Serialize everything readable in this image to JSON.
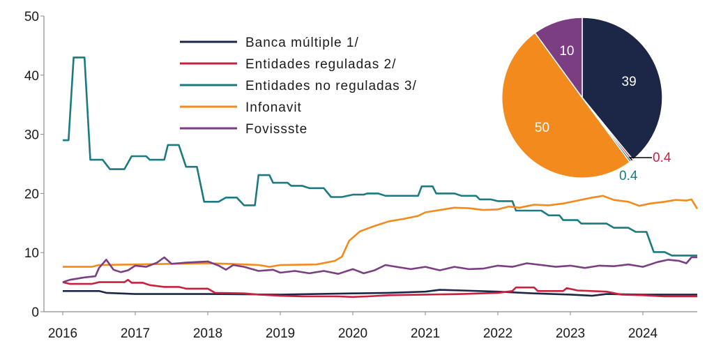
{
  "chart_data": [
    {
      "type": "line",
      "title": "",
      "xlabel": "",
      "ylabel": "",
      "xlim": [
        2016,
        2024.75
      ],
      "ylim": [
        0,
        50
      ],
      "y_ticks": [
        0,
        10,
        20,
        30,
        40,
        50
      ],
      "x_ticks": [
        2016,
        2017,
        2018,
        2019,
        2020,
        2021,
        2022,
        2023,
        2024
      ],
      "legend_position": "top-center",
      "series": [
        {
          "name": "Banca múltiple 1/",
          "color": "#1c2747",
          "points": [
            [
              2016.0,
              3.5
            ],
            [
              2016.5,
              3.5
            ],
            [
              2016.6,
              3.2
            ],
            [
              2017.0,
              3.0
            ],
            [
              2018.0,
              3.0
            ],
            [
              2019.0,
              2.9
            ],
            [
              2020.0,
              3.1
            ],
            [
              2020.5,
              3.2
            ],
            [
              2021.0,
              3.4
            ],
            [
              2021.2,
              3.7
            ],
            [
              2021.5,
              3.6
            ],
            [
              2022.0,
              3.4
            ],
            [
              2022.5,
              3.1
            ],
            [
              2023.0,
              2.9
            ],
            [
              2023.3,
              2.7
            ],
            [
              2023.5,
              3.0
            ],
            [
              2024.0,
              2.9
            ],
            [
              2024.75,
              2.9
            ]
          ]
        },
        {
          "name": "Entidades reguladas 2/",
          "color": "#c8203f",
          "points": [
            [
              2016.0,
              5.0
            ],
            [
              2016.1,
              4.7
            ],
            [
              2016.4,
              4.7
            ],
            [
              2016.5,
              5.0
            ],
            [
              2016.85,
              5.0
            ],
            [
              2016.9,
              5.4
            ],
            [
              2016.95,
              4.9
            ],
            [
              2017.1,
              4.9
            ],
            [
              2017.2,
              4.5
            ],
            [
              2017.4,
              4.2
            ],
            [
              2017.6,
              4.2
            ],
            [
              2017.7,
              3.9
            ],
            [
              2018.0,
              3.9
            ],
            [
              2018.1,
              3.2
            ],
            [
              2018.5,
              3.1
            ],
            [
              2018.7,
              2.9
            ],
            [
              2019.0,
              2.7
            ],
            [
              2019.3,
              2.6
            ],
            [
              2019.8,
              2.6
            ],
            [
              2020.0,
              2.5
            ],
            [
              2020.2,
              2.6
            ],
            [
              2020.5,
              2.8
            ],
            [
              2021.0,
              2.9
            ],
            [
              2021.5,
              3.0
            ],
            [
              2022.0,
              3.2
            ],
            [
              2022.2,
              3.5
            ],
            [
              2022.25,
              4.1
            ],
            [
              2022.5,
              4.1
            ],
            [
              2022.55,
              3.5
            ],
            [
              2022.9,
              3.5
            ],
            [
              2022.95,
              4.0
            ],
            [
              2023.1,
              3.6
            ],
            [
              2023.5,
              3.4
            ],
            [
              2023.7,
              2.9
            ],
            [
              2024.0,
              2.8
            ],
            [
              2024.3,
              2.6
            ],
            [
              2024.75,
              2.6
            ]
          ]
        },
        {
          "name": "Entidades no reguladas 3/",
          "color": "#1a7a80",
          "points": [
            [
              2016.0,
              29.0
            ],
            [
              2016.08,
              29.0
            ],
            [
              2016.15,
              43.0
            ],
            [
              2016.3,
              43.0
            ],
            [
              2016.38,
              25.7
            ],
            [
              2016.55,
              25.7
            ],
            [
              2016.65,
              24.1
            ],
            [
              2016.85,
              24.1
            ],
            [
              2016.95,
              26.3
            ],
            [
              2017.15,
              26.3
            ],
            [
              2017.2,
              25.7
            ],
            [
              2017.4,
              25.7
            ],
            [
              2017.45,
              28.2
            ],
            [
              2017.6,
              28.2
            ],
            [
              2017.7,
              24.5
            ],
            [
              2017.85,
              24.5
            ],
            [
              2017.95,
              18.6
            ],
            [
              2018.15,
              18.6
            ],
            [
              2018.25,
              19.3
            ],
            [
              2018.4,
              19.3
            ],
            [
              2018.5,
              18.0
            ],
            [
              2018.65,
              18.0
            ],
            [
              2018.7,
              23.1
            ],
            [
              2018.85,
              23.1
            ],
            [
              2018.9,
              21.8
            ],
            [
              2019.1,
              21.8
            ],
            [
              2019.15,
              21.3
            ],
            [
              2019.3,
              21.3
            ],
            [
              2019.4,
              20.9
            ],
            [
              2019.6,
              20.9
            ],
            [
              2019.7,
              19.4
            ],
            [
              2019.85,
              19.4
            ],
            [
              2020.0,
              19.8
            ],
            [
              2020.15,
              19.8
            ],
            [
              2020.2,
              20.0
            ],
            [
              2020.35,
              20.0
            ],
            [
              2020.45,
              19.6
            ],
            [
              2020.9,
              19.6
            ],
            [
              2020.95,
              21.2
            ],
            [
              2021.1,
              21.2
            ],
            [
              2021.15,
              20.0
            ],
            [
              2021.4,
              20.0
            ],
            [
              2021.5,
              19.6
            ],
            [
              2021.7,
              19.6
            ],
            [
              2021.75,
              19.0
            ],
            [
              2021.9,
              19.0
            ],
            [
              2022.0,
              18.7
            ],
            [
              2022.2,
              18.7
            ],
            [
              2022.25,
              17.1
            ],
            [
              2022.6,
              17.1
            ],
            [
              2022.7,
              16.3
            ],
            [
              2022.85,
              16.3
            ],
            [
              2022.9,
              15.5
            ],
            [
              2023.1,
              15.5
            ],
            [
              2023.15,
              14.9
            ],
            [
              2023.5,
              14.9
            ],
            [
              2023.6,
              14.2
            ],
            [
              2023.8,
              14.2
            ],
            [
              2023.9,
              13.5
            ],
            [
              2024.05,
              13.5
            ],
            [
              2024.15,
              10.1
            ],
            [
              2024.3,
              10.1
            ],
            [
              2024.4,
              9.5
            ],
            [
              2024.75,
              9.5
            ]
          ]
        },
        {
          "name": "Infonavit",
          "color": "#f28a1d",
          "points": [
            [
              2016.0,
              7.6
            ],
            [
              2016.4,
              7.6
            ],
            [
              2016.5,
              7.9
            ],
            [
              2017.0,
              8.0
            ],
            [
              2017.5,
              8.1
            ],
            [
              2018.0,
              8.2
            ],
            [
              2018.3,
              8.1
            ],
            [
              2018.7,
              7.9
            ],
            [
              2018.85,
              7.6
            ],
            [
              2019.0,
              7.9
            ],
            [
              2019.5,
              8.0
            ],
            [
              2019.75,
              8.6
            ],
            [
              2019.85,
              9.3
            ],
            [
              2019.95,
              12.0
            ],
            [
              2020.1,
              13.6
            ],
            [
              2020.3,
              14.5
            ],
            [
              2020.5,
              15.3
            ],
            [
              2020.7,
              15.7
            ],
            [
              2020.9,
              16.2
            ],
            [
              2021.0,
              16.8
            ],
            [
              2021.2,
              17.2
            ],
            [
              2021.4,
              17.6
            ],
            [
              2021.6,
              17.5
            ],
            [
              2021.8,
              17.2
            ],
            [
              2022.0,
              17.3
            ],
            [
              2022.15,
              17.8
            ],
            [
              2022.3,
              17.6
            ],
            [
              2022.5,
              18.1
            ],
            [
              2022.7,
              18.0
            ],
            [
              2022.9,
              18.3
            ],
            [
              2023.1,
              18.8
            ],
            [
              2023.3,
              19.3
            ],
            [
              2023.45,
              19.6
            ],
            [
              2023.6,
              18.9
            ],
            [
              2023.8,
              18.6
            ],
            [
              2023.95,
              17.9
            ],
            [
              2024.1,
              18.3
            ],
            [
              2024.3,
              18.6
            ],
            [
              2024.45,
              18.9
            ],
            [
              2024.6,
              18.8
            ],
            [
              2024.67,
              19.0
            ],
            [
              2024.75,
              17.4
            ]
          ]
        },
        {
          "name": "Fovissste",
          "color": "#7b3e82",
          "points": [
            [
              2016.0,
              5.0
            ],
            [
              2016.1,
              5.4
            ],
            [
              2016.3,
              5.8
            ],
            [
              2016.45,
              6.0
            ],
            [
              2016.5,
              7.4
            ],
            [
              2016.6,
              8.8
            ],
            [
              2016.7,
              7.1
            ],
            [
              2016.8,
              6.7
            ],
            [
              2016.9,
              7.0
            ],
            [
              2017.0,
              7.8
            ],
            [
              2017.15,
              7.6
            ],
            [
              2017.3,
              8.3
            ],
            [
              2017.4,
              9.2
            ],
            [
              2017.5,
              8.1
            ],
            [
              2017.7,
              8.3
            ],
            [
              2018.0,
              8.5
            ],
            [
              2018.15,
              7.8
            ],
            [
              2018.25,
              7.1
            ],
            [
              2018.35,
              7.9
            ],
            [
              2018.5,
              7.6
            ],
            [
              2018.7,
              6.9
            ],
            [
              2018.9,
              7.1
            ],
            [
              2019.0,
              6.6
            ],
            [
              2019.2,
              6.9
            ],
            [
              2019.4,
              6.5
            ],
            [
              2019.6,
              6.9
            ],
            [
              2019.8,
              6.4
            ],
            [
              2020.0,
              7.2
            ],
            [
              2020.15,
              6.5
            ],
            [
              2020.3,
              7.0
            ],
            [
              2020.45,
              7.9
            ],
            [
              2020.6,
              7.6
            ],
            [
              2020.8,
              7.2
            ],
            [
              2021.0,
              7.6
            ],
            [
              2021.2,
              7.0
            ],
            [
              2021.4,
              7.6
            ],
            [
              2021.6,
              7.2
            ],
            [
              2021.8,
              7.3
            ],
            [
              2022.0,
              7.8
            ],
            [
              2022.2,
              7.6
            ],
            [
              2022.4,
              8.2
            ],
            [
              2022.6,
              7.9
            ],
            [
              2022.8,
              7.6
            ],
            [
              2023.0,
              7.8
            ],
            [
              2023.2,
              7.4
            ],
            [
              2023.4,
              7.8
            ],
            [
              2023.6,
              7.7
            ],
            [
              2023.8,
              8.0
            ],
            [
              2024.0,
              7.6
            ],
            [
              2024.2,
              8.4
            ],
            [
              2024.35,
              8.8
            ],
            [
              2024.5,
              8.6
            ],
            [
              2024.6,
              8.2
            ],
            [
              2024.67,
              9.2
            ],
            [
              2024.75,
              9.2
            ]
          ]
        }
      ]
    },
    {
      "type": "pie",
      "title": "",
      "slices": [
        {
          "label": "39",
          "value": 39,
          "series": "Banca múltiple 1/",
          "color": "#1c2747",
          "label_color": "#ffffff"
        },
        {
          "label": "0.4",
          "value": 0.4,
          "series": "Entidades reguladas 2/",
          "color": "#c8203f",
          "label_color": "#c8203f"
        },
        {
          "label": "0.4",
          "value": 0.4,
          "series": "Entidades no reguladas 3/",
          "color": "#1a7a80",
          "label_color": "#1a7a80"
        },
        {
          "label": "50",
          "value": 50,
          "series": "Infonavit",
          "color": "#f28a1d",
          "label_color": "#ffffff"
        },
        {
          "label": "10",
          "value": 10,
          "series": "Fovissste",
          "color": "#7b3e82",
          "label_color": "#ffffff"
        }
      ]
    }
  ]
}
